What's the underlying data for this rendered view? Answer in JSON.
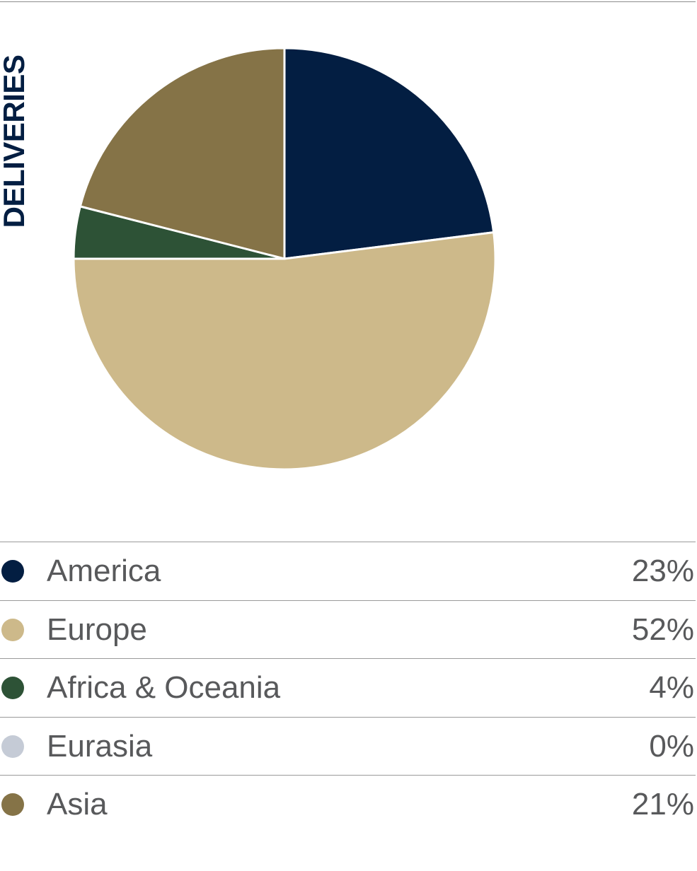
{
  "title": "DELIVERIES",
  "colors": {
    "america": "#031e42",
    "europe": "#cdb98a",
    "africa_oceania": "#2d5236",
    "eurasia": "#c5cbd6",
    "asia": "#857347"
  },
  "chart_data": {
    "type": "pie",
    "title": "DELIVERIES",
    "slices": [
      {
        "label": "America",
        "value": 23,
        "display": "23%",
        "color": "#031e42"
      },
      {
        "label": "Europe",
        "value": 52,
        "display": "52%",
        "color": "#cdb98a"
      },
      {
        "label": "Africa & Oceania",
        "value": 4,
        "display": "4%",
        "color": "#2d5236"
      },
      {
        "label": "Eurasia",
        "value": 0,
        "display": "0%",
        "color": "#c5cbd6"
      },
      {
        "label": "Asia",
        "value": 21,
        "display": "21%",
        "color": "#857347"
      }
    ],
    "legend_position": "bottom"
  }
}
